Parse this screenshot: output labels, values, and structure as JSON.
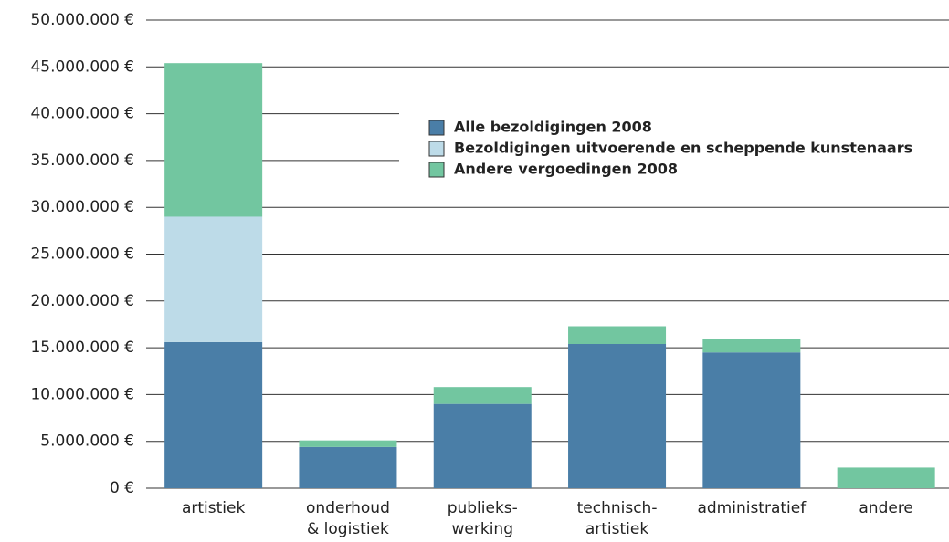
{
  "chart_data": {
    "type": "bar",
    "stacked": true,
    "categories": [
      [
        "artistiek"
      ],
      [
        "onderhoud",
        "& logistiek"
      ],
      [
        "publieks-",
        "werking"
      ],
      [
        "technisch-",
        "artistiek"
      ],
      [
        "administratief"
      ],
      [
        "andere"
      ]
    ],
    "series": [
      {
        "name": "Alle bezoldigingen 2008",
        "color": "#4a7ea7",
        "values": [
          15600000,
          4400000,
          9000000,
          15400000,
          14500000,
          0
        ]
      },
      {
        "name": "Bezoldigingen uitvoerende en scheppende kunstenaars",
        "color": "#bddbe8",
        "values": [
          13400000,
          0,
          0,
          0,
          0,
          0
        ]
      },
      {
        "name": "Andere vergoedingen 2008",
        "color": "#72c6a0",
        "values": [
          16400000,
          700000,
          1800000,
          1900000,
          1400000,
          2200000
        ]
      }
    ],
    "ylim": [
      0,
      50000000
    ],
    "yticks": [
      {
        "value": 0,
        "label": "0 €"
      },
      {
        "value": 5000000,
        "label": "5.000.000 €"
      },
      {
        "value": 10000000,
        "label": "10.000.000 €"
      },
      {
        "value": 15000000,
        "label": "15.000.000 €"
      },
      {
        "value": 20000000,
        "label": "20.000.000 €"
      },
      {
        "value": 25000000,
        "label": "25.000.000 €"
      },
      {
        "value": 30000000,
        "label": "30.000.000 €"
      },
      {
        "value": 35000000,
        "label": "35.000.000 €"
      },
      {
        "value": 40000000,
        "label": "40.000.000 €"
      },
      {
        "value": 45000000,
        "label": "45.000.000 €"
      },
      {
        "value": 50000000,
        "label": "50.000.000 €"
      }
    ],
    "grid": true
  }
}
